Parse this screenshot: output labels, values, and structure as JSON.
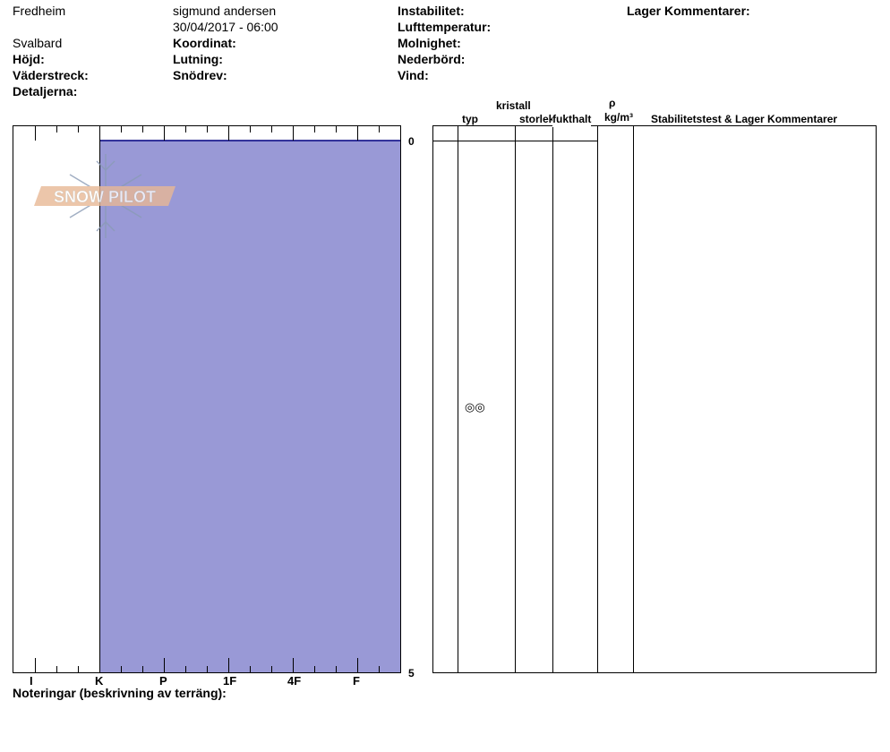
{
  "header": {
    "location": "Fredheim",
    "region": "Svalbard",
    "observer": "sigmund andersen",
    "datetime": "30/04/2017 - 06:00",
    "labels": {
      "hojd": "Höjd:",
      "vaderstreck": "Väderstreck:",
      "detaljerna": "Detaljerna:",
      "koordinat": "Koordinat:",
      "lutning": "Lutning:",
      "snodrev": "Snödrev:",
      "instabilitet": "Instabilitet:",
      "lufttemperatur": "Lufttemperatur:",
      "molnighet": "Molnighet:",
      "nederbord": "Nederbörd:",
      "vind": "Vind:",
      "lager_kommentarer": "Lager Kommentarer:"
    }
  },
  "profile": {
    "depth_labels": [
      "0",
      "5"
    ],
    "hardness_labels": [
      "I",
      "K",
      "P",
      "1F",
      "4F",
      "F"
    ],
    "layer_fill": "#9999d6",
    "layer_hardness": "K",
    "layer_depth": [
      0,
      5
    ]
  },
  "logo": {
    "text": "SNOW PILOT"
  },
  "table": {
    "headers": {
      "typ": "typ",
      "kristall": "kristall",
      "storlek": "storlek",
      "fukthalt": "fukthalt",
      "rho": "ρ",
      "density_unit": "kg/m³",
      "comments": "Stabilitetstest & Lager Kommentarer"
    },
    "layer_grain_symbol": "◎◎"
  },
  "footer": {
    "notes_label": "Noteringar (beskrivning av terräng):"
  }
}
